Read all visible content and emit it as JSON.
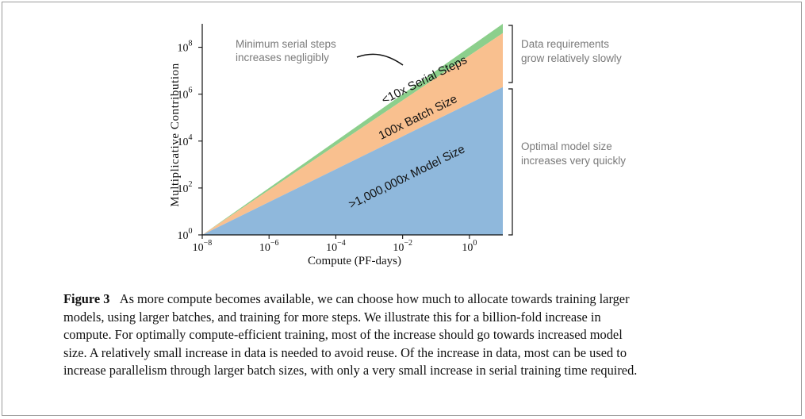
{
  "chart_data": {
    "type": "area",
    "title": "",
    "xlabel": "Compute (PF-days)",
    "ylabel": "Multiplicative Contribution",
    "x_scale": "log",
    "y_scale": "log",
    "xlim": [
      1e-08,
      10
    ],
    "ylim": [
      1,
      1000000000.0
    ],
    "x_ticks": [
      {
        "value": 1e-08,
        "base": "10",
        "exp": "−8"
      },
      {
        "value": 1e-06,
        "base": "10",
        "exp": "−6"
      },
      {
        "value": 0.0001,
        "base": "10",
        "exp": "−4"
      },
      {
        "value": 0.01,
        "base": "10",
        "exp": "−2"
      },
      {
        "value": 1,
        "base": "10",
        "exp": "0"
      }
    ],
    "y_ticks": [
      {
        "value": 1,
        "base": "10",
        "exp": "0"
      },
      {
        "value": 100,
        "base": "10",
        "exp": "2"
      },
      {
        "value": 10000,
        "base": "10",
        "exp": "4"
      },
      {
        "value": 1000000,
        "base": "10",
        "exp": "6"
      },
      {
        "value": 100000000,
        "base": "10",
        "exp": "8"
      }
    ],
    "x": [
      1e-08,
      10
    ],
    "series": [
      {
        "values": [
          1,
          2000000
        ],
        "color": "#8fb8dc"
      },
      {
        "values": [
          1,
          400000000
        ],
        "color": "#f9c08f"
      },
      {
        "values": [
          1,
          1000000000
        ],
        "color": "#8ccf8c"
      }
    ],
    "area_labels": {
      "serial": "<10x Serial Steps",
      "batch": "100x Batch Size",
      "model": ">1,000,000x Model Size"
    },
    "annotations": {
      "min_serial": [
        "Minimum serial steps",
        "increases negligibly"
      ],
      "data_req": [
        "Data requirements",
        "grow relatively slowly"
      ],
      "model_size": [
        "Optimal model size",
        "increases very quickly"
      ]
    }
  },
  "caption": {
    "label": "Figure 3",
    "lines": [
      "As more compute becomes available, we can choose how much to allocate towards training larger",
      "models, using larger batches, and training for more steps.  We illustrate this for a billion-fold increase in",
      "compute. For optimally compute-efficient training, most of the increase should go towards increased model",
      "size. A relatively small increase in data is needed to avoid reuse. Of the increase in data, most can be used to",
      "increase parallelism through larger batch sizes, with only a very small increase in serial training time required."
    ]
  }
}
